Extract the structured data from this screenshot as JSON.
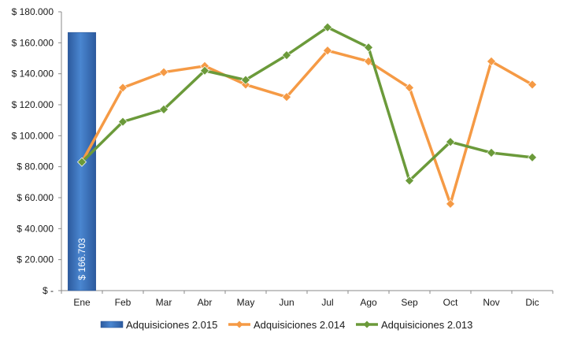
{
  "chart_data": {
    "type": "bar",
    "categories": [
      "Ene",
      "Feb",
      "Mar",
      "Abr",
      "May",
      "Jun",
      "Jul",
      "Ago",
      "Sep",
      "Oct",
      "Nov",
      "Dic"
    ],
    "ylim": [
      0,
      180000
    ],
    "y_ticks": [
      {
        "value": 0,
        "label": "$ -"
      },
      {
        "value": 20000,
        "label": "$ 20.000"
      },
      {
        "value": 40000,
        "label": "$ 40.000"
      },
      {
        "value": 60000,
        "label": "$ 60.000"
      },
      {
        "value": 80000,
        "label": "$ 80.000"
      },
      {
        "value": 100000,
        "label": "$ 100.000"
      },
      {
        "value": 120000,
        "label": "$ 120.000"
      },
      {
        "value": 140000,
        "label": "$ 140.000"
      },
      {
        "value": 160000,
        "label": "$ 160.000"
      },
      {
        "value": 180000,
        "label": "$ 180.000"
      }
    ],
    "grid": false,
    "legend_position": "bottom",
    "series": [
      {
        "name": "Adquisiciones 2.015",
        "kind": "bar",
        "color": "#3a72c0",
        "values": [
          166703,
          null,
          null,
          null,
          null,
          null,
          null,
          null,
          null,
          null,
          null,
          null
        ],
        "data_labels": [
          "$ 166.703"
        ]
      },
      {
        "name": "Adquisiciones 2.014",
        "kind": "line",
        "color": "#f59a45",
        "values": [
          83000,
          131000,
          141000,
          145000,
          133000,
          125000,
          155000,
          148000,
          131000,
          56000,
          148000,
          133000
        ]
      },
      {
        "name": "Adquisiciones 2.013",
        "kind": "line",
        "color": "#6b9a3a",
        "values": [
          83000,
          109000,
          117000,
          142000,
          136000,
          152000,
          170000,
          157000,
          71000,
          96000,
          89000,
          86000
        ]
      }
    ]
  }
}
